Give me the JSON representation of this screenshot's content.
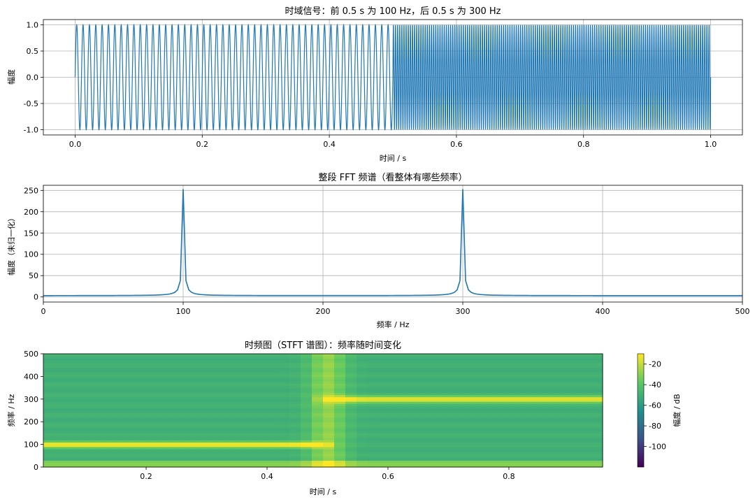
{
  "chart_data": [
    {
      "type": "line",
      "title": "时域信号：前 0.5 s 为 100 Hz，后 0.5 s 为 300 Hz",
      "xlabel": "时间 / s",
      "ylabel": "幅度",
      "xlim": [
        -0.05,
        1.05
      ],
      "ylim": [
        -1.1,
        1.1
      ],
      "xticks": [
        "0.0",
        "0.2",
        "0.4",
        "0.6",
        "0.8",
        "1.0"
      ],
      "yticks": [
        "-1.0",
        "-0.5",
        "0.0",
        "0.5",
        "1.0"
      ],
      "grid": true,
      "color": "#1f77b4",
      "series": [
        {
          "segment": "first",
          "t_start": 0.0,
          "t_end": 0.5,
          "frequency_hz": 100,
          "amplitude": 1.0
        },
        {
          "segment": "second",
          "t_start": 0.5,
          "t_end": 1.0,
          "frequency_hz": 300,
          "amplitude": 1.0
        }
      ]
    },
    {
      "type": "line",
      "title": "整段 FFT 频谱（看整体有哪些频率）",
      "xlabel": "频率 / Hz",
      "ylabel": "幅度（未归一化）",
      "xlim": [
        0,
        500
      ],
      "ylim": [
        -12,
        262
      ],
      "xticks": [
        "0",
        "100",
        "200",
        "300",
        "400",
        "500"
      ],
      "yticks": [
        "0",
        "50",
        "100",
        "150",
        "200",
        "250"
      ],
      "grid": true,
      "color": "#1f77b4",
      "peaks": [
        {
          "frequency_hz": 100,
          "magnitude": 250
        },
        {
          "frequency_hz": 300,
          "magnitude": 250
        }
      ],
      "baseline": 3
    },
    {
      "type": "heatmap",
      "title": "时频图（STFT 谱图）：频率随时间变化",
      "xlabel": "时间 / s",
      "ylabel": "频率 / Hz",
      "xlim": [
        0.03,
        0.955
      ],
      "ylim": [
        0,
        500
      ],
      "xticks": [
        "0.2",
        "0.4",
        "0.6",
        "0.8"
      ],
      "yticks": [
        "0",
        "100",
        "200",
        "300",
        "400",
        "500"
      ],
      "colormap": "viridis",
      "colorbar": {
        "label": "幅度 / dB",
        "range": [
          -120,
          -10
        ],
        "ticks": [
          "-20",
          "-40",
          "-60",
          "-80",
          "-100"
        ]
      },
      "bands": [
        {
          "t_start": 0.03,
          "t_end": 0.5,
          "frequency_hz": 100,
          "level_db": -10
        },
        {
          "t_start": 0.5,
          "t_end": 0.955,
          "frequency_hz": 300,
          "level_db": -10
        }
      ],
      "transition_time": 0.5,
      "background_db": -50
    }
  ]
}
